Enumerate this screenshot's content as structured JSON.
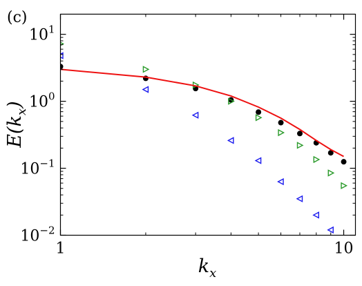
{
  "chart_data": {
    "type": "scatter",
    "panel_label": "(c)",
    "xlabel_base": "k",
    "xlabel_sub": "x",
    "ylabel": "E(k",
    "ylabel_sub": "x",
    "ylabel_close": ")",
    "xscale": "log",
    "yscale": "log",
    "xlim": [
      1,
      11
    ],
    "ylim": [
      0.01,
      20
    ],
    "grid": false,
    "x_ticks": [
      {
        "value": 1,
        "label": "1"
      },
      {
        "value": 10,
        "label": "10"
      }
    ],
    "y_ticks": [
      {
        "value": 0.01,
        "base": "10",
        "exp": "−2"
      },
      {
        "value": 0.1,
        "base": "10",
        "exp": "−1"
      },
      {
        "value": 1,
        "base": "10",
        "exp": "0"
      },
      {
        "value": 10,
        "base": "10",
        "exp": "1"
      }
    ],
    "series": [
      {
        "marker": "circle",
        "color": "#000000",
        "x": [
          1,
          2,
          3,
          4,
          5,
          6,
          7,
          8,
          9,
          10
        ],
        "y": [
          3.3,
          2.2,
          1.55,
          1.05,
          0.69,
          0.48,
          0.33,
          0.24,
          0.17,
          0.125
        ]
      },
      {
        "marker": "triangle-right",
        "color": "#2a9a2a",
        "x": [
          1,
          2,
          3,
          4,
          5,
          6,
          7,
          8,
          9,
          10
        ],
        "y": [
          7.2,
          3.0,
          1.75,
          1.0,
          0.57,
          0.34,
          0.22,
          0.135,
          0.085,
          0.055
        ]
      },
      {
        "marker": "triangle-left",
        "color": "#1a1aee",
        "x": [
          1,
          2,
          3,
          4,
          5,
          6,
          7,
          8,
          9
        ],
        "y": [
          4.8,
          1.5,
          0.62,
          0.26,
          0.13,
          0.063,
          0.035,
          0.02,
          0.012
        ]
      },
      {
        "marker": "line",
        "color": "#ee1111",
        "x": [
          1,
          2,
          3,
          4,
          5,
          6,
          7,
          8,
          9,
          10
        ],
        "y": [
          3.0,
          2.3,
          1.7,
          1.2,
          0.82,
          0.56,
          0.38,
          0.26,
          0.19,
          0.15
        ]
      }
    ]
  }
}
